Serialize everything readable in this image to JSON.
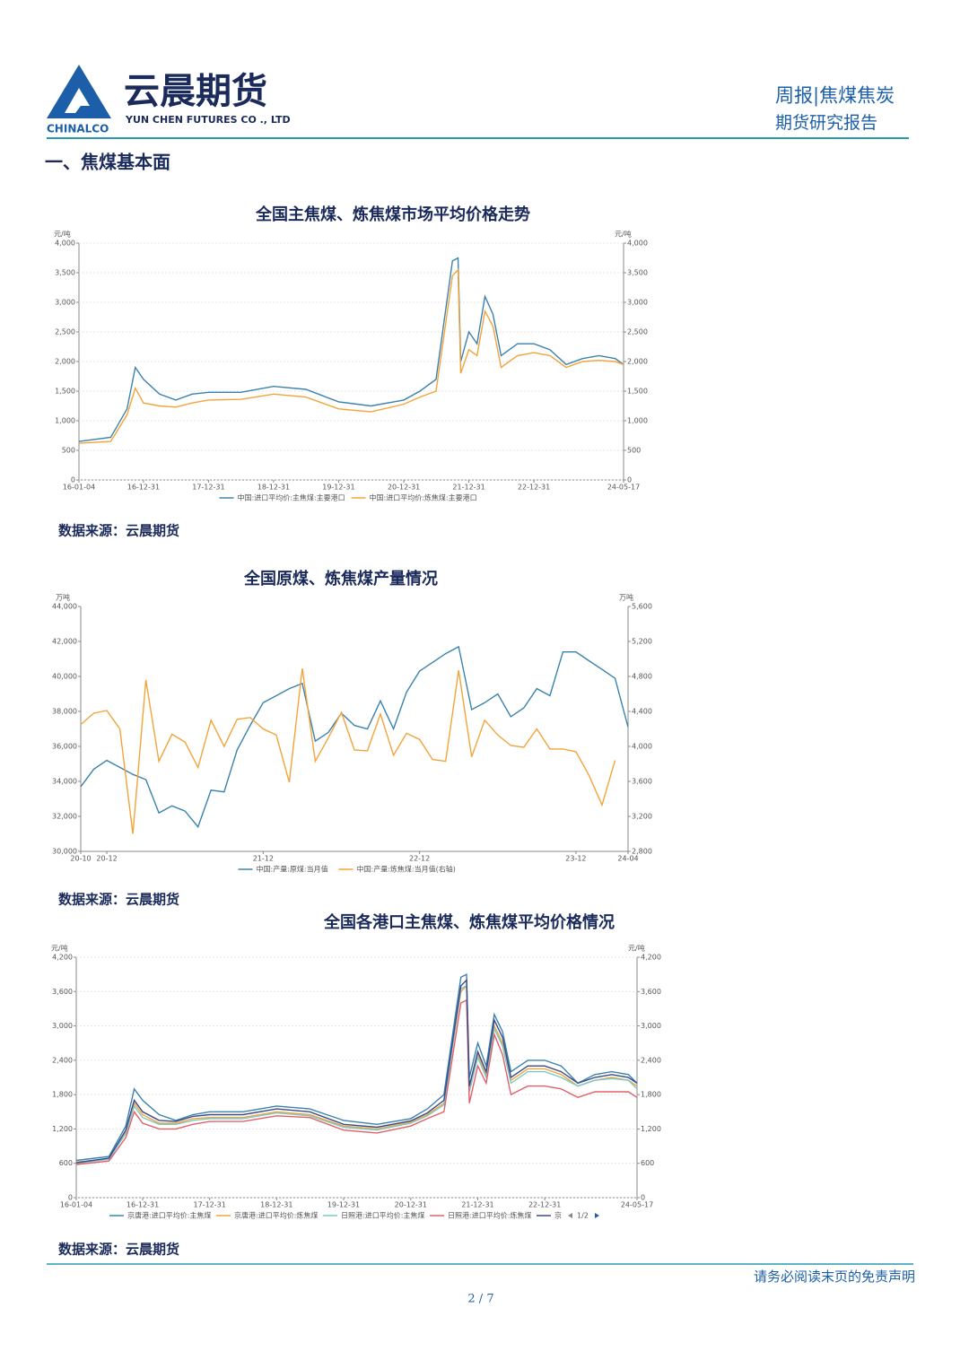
{
  "header": {
    "company": "云晨期货",
    "company_en": "YUN CHEN FUTURES CO ., LTD",
    "brand": "CHINALCO",
    "report_type": "周报|焦煤焦炭",
    "report_name": "期货研究报告"
  },
  "section_title": "一、焦煤基本面",
  "chart_data": [
    {
      "type": "line",
      "title": "全国主焦煤、炼焦煤市场平均价格走势",
      "y_label": "元/吨",
      "y2_label": "元/吨",
      "x": [
        "16-01-04",
        "16-06-30",
        "16-09-30",
        "16-11-15",
        "16-12-31",
        "17-03-31",
        "17-06-30",
        "17-09-30",
        "17-12-31",
        "18-06-30",
        "18-12-31",
        "19-06-30",
        "19-12-31",
        "20-06-30",
        "20-12-31",
        "21-03-31",
        "21-06-30",
        "21-09-30",
        "21-10-31",
        "21-11-15",
        "21-12-31",
        "22-02-15",
        "22-03-31",
        "22-05-15",
        "22-06-30",
        "22-09-30",
        "22-12-31",
        "23-03-31",
        "23-06-30",
        "23-09-30",
        "23-12-31",
        "24-03-31",
        "24-05-17"
      ],
      "xlim": [
        "16-01-04",
        "24-05-17"
      ],
      "xticks": [
        "16-01-04",
        "16-12-31",
        "17-12-31",
        "18-12-31",
        "19-12-31",
        "20-12-31",
        "21-12-31",
        "22-12-31",
        "24-05-17"
      ],
      "ylim": [
        0,
        4000
      ],
      "yticks": [
        0,
        500,
        {
          "value": 1000,
          "label": "1,000"
        },
        {
          "value": 1500,
          "label": "1,500"
        },
        {
          "value": 2000,
          "label": "2,000"
        },
        {
          "value": 2500,
          "label": "2,500"
        },
        {
          "value": 3000,
          "label": "3,000"
        },
        {
          "value": 3500,
          "label": "3,500"
        },
        {
          "value": 4000,
          "label": "4,000"
        }
      ],
      "y2lim": [
        0,
        4000
      ],
      "y2ticks": [
        0,
        500,
        {
          "value": 1000,
          "label": "1,000"
        },
        {
          "value": 1500,
          "label": "1,500"
        },
        {
          "value": 2000,
          "label": "2,000"
        },
        {
          "value": 2500,
          "label": "2,500"
        },
        {
          "value": 3000,
          "label": "3,000"
        },
        {
          "value": 3500,
          "label": "3,500"
        },
        {
          "value": 4000,
          "label": "4,000"
        }
      ],
      "grid": true,
      "series": [
        {
          "name": "中国:进口平均价:主焦煤:主要港口",
          "color": "#3b82ad",
          "values": [
            650,
            720,
            1200,
            1900,
            1700,
            1450,
            1350,
            1450,
            1480,
            1480,
            1580,
            1530,
            1320,
            1250,
            1350,
            1500,
            1700,
            3700,
            3750,
            2000,
            2500,
            2300,
            3100,
            2800,
            2100,
            2300,
            2300,
            2200,
            1950,
            2050,
            2100,
            2050,
            1950
          ]
        },
        {
          "name": "中国:进口平均价:炼焦煤:主要港口",
          "color": "#f2a43a",
          "values": [
            620,
            650,
            1100,
            1550,
            1300,
            1250,
            1230,
            1300,
            1350,
            1360,
            1450,
            1400,
            1200,
            1150,
            1280,
            1400,
            1500,
            3450,
            3550,
            1800,
            2200,
            2100,
            2850,
            2600,
            1900,
            2100,
            2150,
            2100,
            1900,
            2000,
            2020,
            2000,
            1950
          ]
        }
      ]
    },
    {
      "type": "line",
      "title": "全国原煤、炼焦煤产量情况",
      "y_label": "万吨",
      "y2_label": "万吨",
      "categories": [
        "20-10",
        null,
        "20-12",
        null,
        null,
        null,
        null,
        null,
        null,
        null,
        null,
        null,
        null,
        null,
        "21-12",
        null,
        null,
        null,
        null,
        null,
        null,
        null,
        null,
        null,
        null,
        null,
        "22-12",
        null,
        null,
        null,
        null,
        null,
        null,
        null,
        null,
        null,
        null,
        null,
        "23-12",
        null,
        null,
        null,
        "24-04"
      ],
      "ylim": [
        30000,
        44000
      ],
      "yticks": [
        {
          "value": 30000,
          "label": "30,000"
        },
        {
          "value": 32000,
          "label": "32,000"
        },
        {
          "value": 34000,
          "label": "34,000"
        },
        {
          "value": 36000,
          "label": "36,000"
        },
        {
          "value": 38000,
          "label": "38,000"
        },
        {
          "value": 40000,
          "label": "40,000"
        },
        {
          "value": 42000,
          "label": "42,000"
        },
        {
          "value": 44000,
          "label": "44,000"
        }
      ],
      "y2lim": [
        2800,
        5600
      ],
      "y2ticks": [
        {
          "value": 2800,
          "label": "2,800"
        },
        {
          "value": 3200,
          "label": "3,200"
        },
        {
          "value": 3600,
          "label": "3,600"
        },
        {
          "value": 4000,
          "label": "4,000"
        },
        {
          "value": 4400,
          "label": "4,400"
        },
        {
          "value": 4800,
          "label": "4,800"
        },
        {
          "value": 5200,
          "label": "5,200"
        },
        {
          "value": 5600,
          "label": "5,600"
        }
      ],
      "grid": false,
      "series": [
        {
          "name": "中国:产量:原煤:当月值",
          "color": "#3b82ad",
          "values": [
            33700,
            34700,
            35200,
            34800,
            34400,
            34100,
            32200,
            32600,
            32300,
            31400,
            33500,
            33400,
            35800,
            37200,
            38500,
            38900,
            39300,
            39600,
            36300,
            36800,
            37900,
            37200,
            37000,
            38600,
            37000,
            39100,
            40300,
            40800,
            41300,
            41700,
            38100,
            38500,
            39000,
            37700,
            38200,
            39300,
            38900,
            41400,
            41400,
            40900,
            40400,
            39900,
            37100
          ]
        },
        {
          "name": "中国:产量:炼焦煤:当月值(右轴)",
          "color": "#f2a43a",
          "axis": "y2",
          "values": [
            4250,
            4380,
            4410,
            4200,
            3000,
            4760,
            3830,
            4140,
            4050,
            3760,
            4300,
            4000,
            4310,
            4330,
            4200,
            4130,
            3590,
            4890,
            3830,
            4100,
            4390,
            3960,
            3950,
            4370,
            3900,
            4150,
            4080,
            3850,
            3830,
            4870,
            3880,
            4300,
            4130,
            4010,
            3990,
            4200,
            3970,
            3970,
            3940,
            3670,
            3330,
            3840,
            null
          ]
        }
      ]
    },
    {
      "type": "line",
      "title": "全国各港口主焦煤、炼焦煤平均价格情况",
      "y_label": "元/吨",
      "y2_label": "元/吨",
      "legend_page": "1/2",
      "x": [
        "16-01-04",
        "16-06-30",
        "16-09-30",
        "16-11-15",
        "16-12-31",
        "17-03-31",
        "17-06-30",
        "17-09-30",
        "17-12-31",
        "18-06-30",
        "18-12-31",
        "19-06-30",
        "19-12-31",
        "20-06-30",
        "20-12-31",
        "21-03-31",
        "21-06-30",
        "21-09-30",
        "21-10-31",
        "21-11-15",
        "21-12-31",
        "22-02-15",
        "22-03-31",
        "22-05-15",
        "22-06-30",
        "22-09-30",
        "22-12-31",
        "23-03-31",
        "23-06-30",
        "23-09-30",
        "23-12-31",
        "24-03-31",
        "24-05-17"
      ],
      "xlim": [
        "16-01-04",
        "24-05-17"
      ],
      "xticks": [
        "16-01-04",
        "16-12-31",
        "17-12-31",
        "18-12-31",
        "19-12-31",
        "20-12-31",
        "21-12-31",
        "22-12-31",
        "24-05-17"
      ],
      "ylim": [
        0,
        4200
      ],
      "yticks": [
        0,
        600,
        {
          "value": 1200,
          "label": "1,200"
        },
        {
          "value": 1800,
          "label": "1,800"
        },
        {
          "value": 2400,
          "label": "2,400"
        },
        {
          "value": 3000,
          "label": "3,000"
        },
        {
          "value": 3600,
          "label": "3,600"
        },
        {
          "value": 4200,
          "label": "4,200"
        }
      ],
      "y2lim": [
        0,
        4200
      ],
      "y2ticks": [
        0,
        600,
        {
          "value": 1200,
          "label": "1,200"
        },
        {
          "value": 1800,
          "label": "1,800"
        },
        {
          "value": 2400,
          "label": "2,400"
        },
        {
          "value": 3000,
          "label": "3,000"
        },
        {
          "value": 3600,
          "label": "3,600"
        },
        {
          "value": 4200,
          "label": "4,200"
        }
      ],
      "grid": true,
      "series": [
        {
          "name": "京唐港:进口平均价:主焦煤",
          "color": "#3b82ad",
          "values": [
            650,
            720,
            1250,
            1900,
            1700,
            1450,
            1350,
            1450,
            1500,
            1500,
            1600,
            1550,
            1350,
            1280,
            1380,
            1550,
            1800,
            3850,
            3900,
            2100,
            2700,
            2300,
            3200,
            2900,
            2200,
            2400,
            2400,
            2300,
            2000,
            2150,
            2200,
            2150,
            2000
          ]
        },
        {
          "name": "京唐港:进口平均价:炼焦煤",
          "color": "#f2a43a",
          "values": [
            620,
            680,
            1150,
            1650,
            1450,
            1300,
            1300,
            1380,
            1400,
            1400,
            1500,
            1450,
            1250,
            1200,
            1320,
            1450,
            1650,
            3600,
            3700,
            1900,
            2500,
            2150,
            3000,
            2700,
            2050,
            2250,
            2250,
            2150,
            1950,
            2050,
            2100,
            2050,
            1950
          ]
        },
        {
          "name": "日照港:进口平均价:主焦煤",
          "color": "#7ec8c4",
          "values": [
            600,
            670,
            1120,
            1600,
            1400,
            1280,
            1280,
            1350,
            1380,
            1380,
            1480,
            1430,
            1230,
            1180,
            1300,
            1430,
            1620,
            3650,
            3700,
            1850,
            2450,
            2100,
            2950,
            2650,
            2000,
            2200,
            2200,
            2100,
            1950,
            2050,
            2080,
            2050,
            1900
          ]
        },
        {
          "name": "日照港:进口平均价:炼焦煤",
          "color": "#e0606a",
          "values": [
            580,
            640,
            1050,
            1500,
            1300,
            1200,
            1200,
            1280,
            1330,
            1330,
            1430,
            1400,
            1180,
            1130,
            1250,
            1380,
            1500,
            3400,
            3450,
            1650,
            2300,
            2000,
            2850,
            2500,
            1800,
            1950,
            1950,
            1900,
            1750,
            1850,
            1850,
            1850,
            1750
          ]
        },
        {
          "name": "京",
          "color": "#3b4a8a",
          "values": [
            610,
            690,
            1180,
            1700,
            1500,
            1350,
            1330,
            1420,
            1450,
            1450,
            1550,
            1500,
            1280,
            1230,
            1340,
            1480,
            1700,
            3700,
            3800,
            1950,
            2550,
            2200,
            3100,
            2800,
            2100,
            2300,
            2300,
            2200,
            2000,
            2100,
            2150,
            2100,
            2000
          ]
        }
      ]
    }
  ],
  "sources": [
    "数据来源：云晨期货",
    "数据来源：云晨期货",
    "数据来源：云晨期货"
  ],
  "footer": {
    "disclaimer": "请务必阅读末页的免责声明",
    "page": "2 / 7"
  }
}
